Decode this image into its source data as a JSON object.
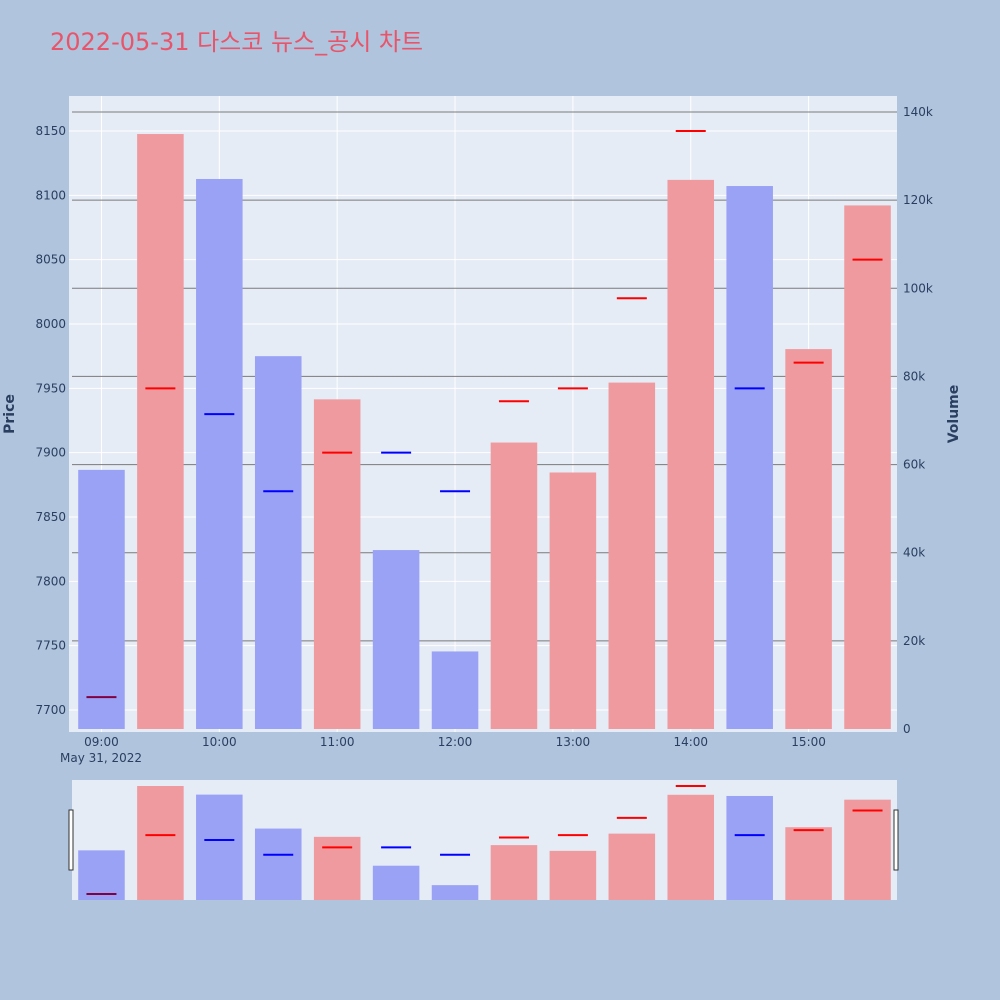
{
  "chart_data": {
    "type": "bar",
    "title": "2022-05-31 다스코 뉴스_공시 차트",
    "y_left_label": "Price",
    "y_right_label": "Volume",
    "x_date_label": "May 31, 2022",
    "x_tick_labels": [
      "09:00",
      "10:00",
      "11:00",
      "12:00",
      "13:00",
      "14:00",
      "15:00"
    ],
    "price_ticks": [
      7700,
      7750,
      7800,
      7850,
      7900,
      7950,
      8000,
      8050,
      8100,
      8150
    ],
    "volume_ticks": [
      "0",
      "20k",
      "40k",
      "60k",
      "80k",
      "100k",
      "120k",
      "140k"
    ],
    "price_range": [
      7685,
      8175
    ],
    "volume_range": [
      0,
      140000
    ],
    "grid": true,
    "colors": {
      "up": "#ef9a9f",
      "down": "#9aa2f5",
      "close_up": "#ff0000",
      "close_down": "#0000ff",
      "close_first": "#800040",
      "background": "#b0c4de",
      "plot_bg": "#e5ecf6",
      "title": "#e8556a"
    },
    "series": [
      {
        "name": "Volume",
        "values": [
          58800,
          135000,
          124800,
          84600,
          74800,
          40600,
          17600,
          65000,
          58200,
          78600,
          124600,
          123200,
          86200,
          118800
        ]
      },
      {
        "name": "Close",
        "values": [
          7710,
          7950,
          7930,
          7870,
          7900,
          7900,
          7870,
          7940,
          7950,
          8020,
          8150,
          7950,
          7970,
          8050
        ]
      }
    ],
    "direction": [
      "down",
      "up",
      "down",
      "down",
      "up",
      "down",
      "down",
      "up",
      "up",
      "up",
      "up",
      "down",
      "up",
      "up"
    ],
    "time_minutes": [
      540,
      570,
      600,
      630,
      660,
      690,
      720,
      750,
      780,
      810,
      840,
      870,
      900,
      930
    ]
  }
}
